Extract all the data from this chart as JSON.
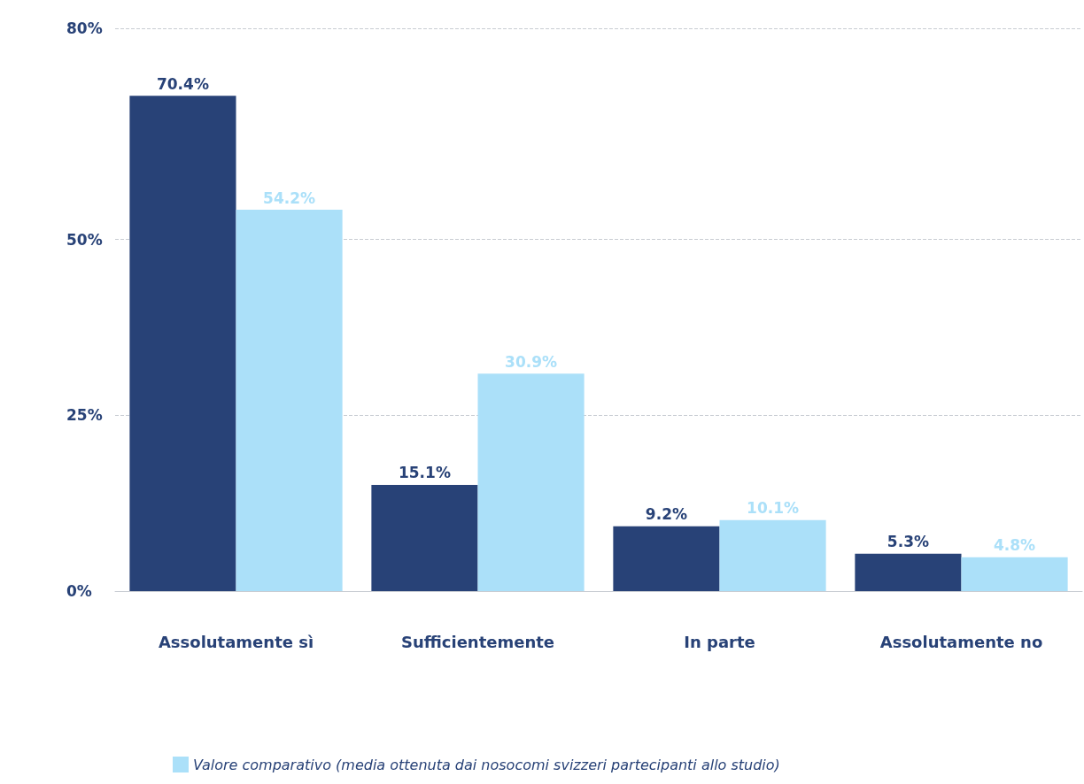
{
  "chart_data": {
    "type": "bar",
    "categories": [
      "Assolutamente sì",
      "Sufficientemente",
      "In parte",
      "Assolutamente no"
    ],
    "series": [
      {
        "color": "#284277",
        "values": [
          70.4,
          15.1,
          9.2,
          5.3
        ],
        "value_labels": [
          "70.4%",
          "15.1%",
          "9.2%",
          "5.3%"
        ]
      },
      {
        "name": "Valore comparativo (media ottenuta dai nosocomi svizzeri partecipanti allo studio)",
        "color": "#abe0f9",
        "values": [
          54.2,
          30.9,
          10.1,
          4.8
        ],
        "value_labels": [
          "54.2%",
          "30.9%",
          "10.1%",
          "4.8%"
        ]
      }
    ],
    "ylim": [
      0,
      80
    ],
    "yticks": [
      {
        "value": 0,
        "label": "0%"
      },
      {
        "value": 25,
        "label": "25%"
      },
      {
        "value": 50,
        "label": "50%"
      },
      {
        "value": 80,
        "label": "80%"
      }
    ],
    "grid": "y",
    "legend": "bottom left"
  }
}
